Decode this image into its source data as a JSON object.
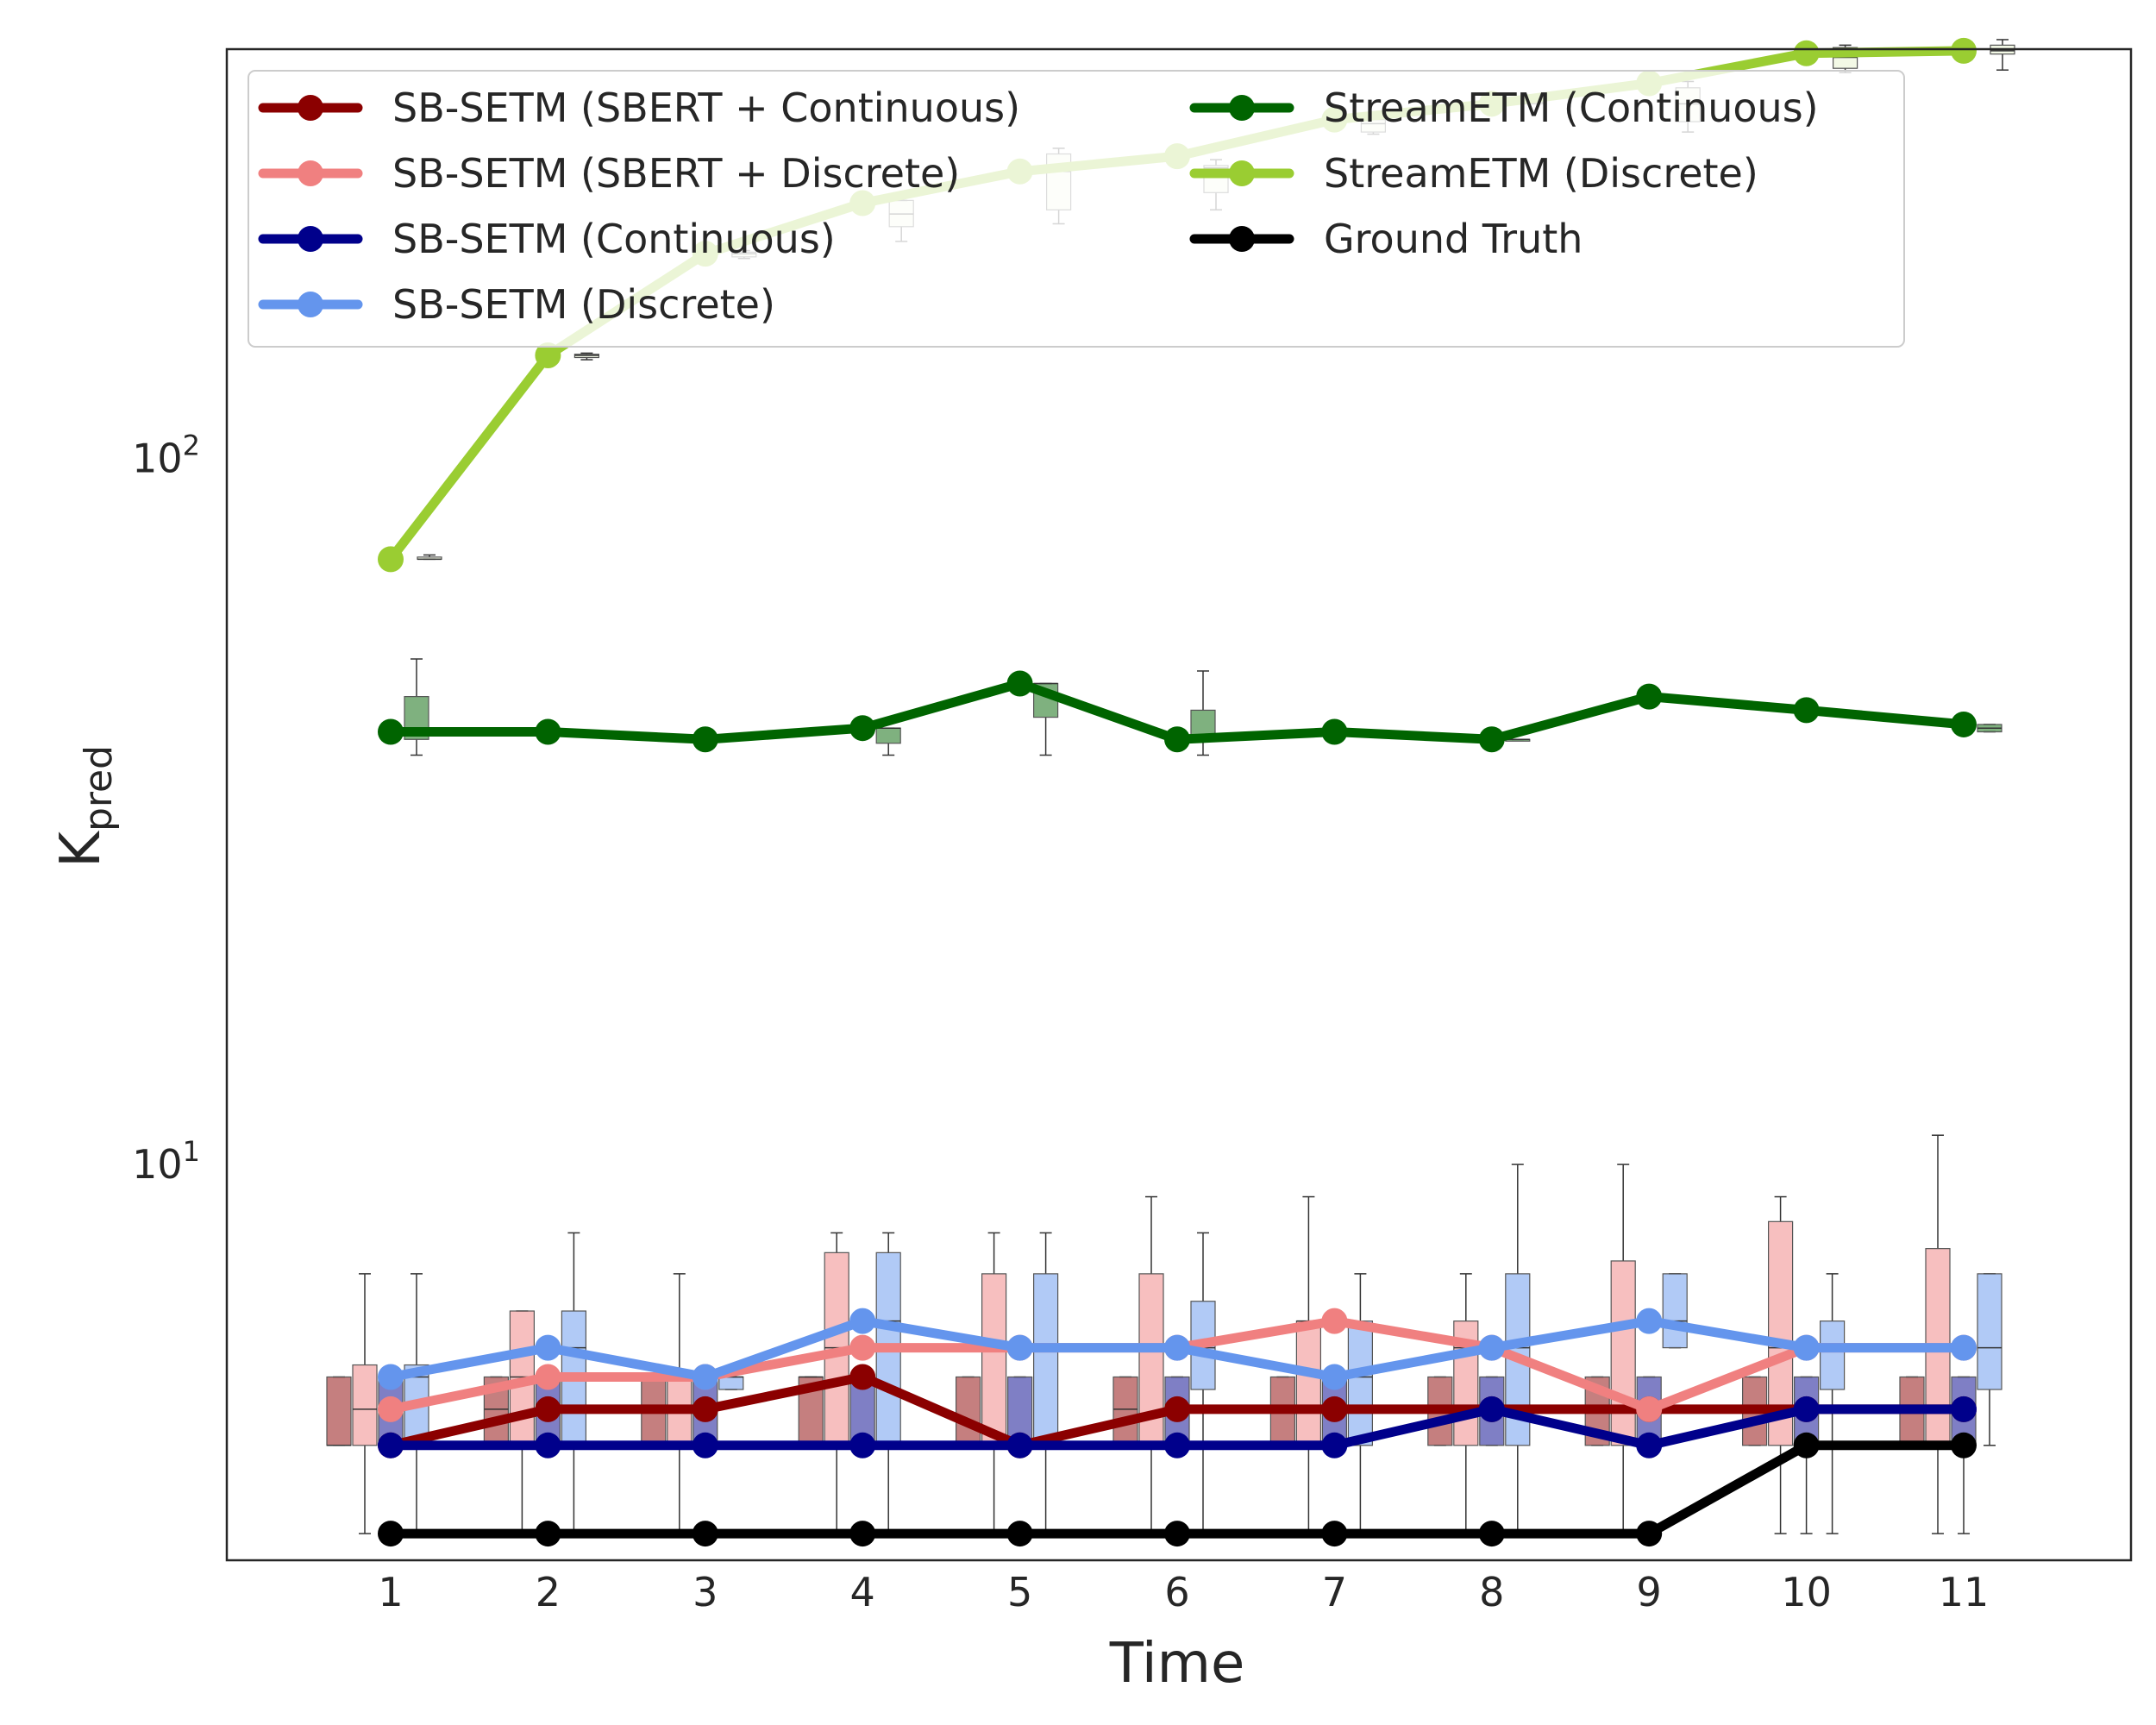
{
  "chart_data": {
    "type": "line",
    "title": "",
    "xlabel": "Time",
    "ylabel": {
      "base": "K",
      "subscript": "pred"
    },
    "yscale": "log",
    "ylim": [
      2.75,
      380
    ],
    "grid": false,
    "legend_position": "top",
    "x": [
      1,
      2,
      3,
      4,
      5,
      6,
      7,
      8,
      9,
      10,
      11
    ],
    "y_ticks": [
      {
        "value": 10,
        "base": "10",
        "exp": "1"
      },
      {
        "value": 100,
        "base": "10",
        "exp": "2"
      }
    ],
    "series": [
      {
        "name": "SB-SETM (SBERT + Continuous)",
        "color": "#8b0000",
        "values": [
          4,
          4.5,
          4.5,
          5,
          4,
          4.5,
          4.5,
          4.5,
          4.5,
          4.5,
          4.5
        ]
      },
      {
        "name": "SB-SETM (SBERT + Discrete)",
        "color": "#f08080",
        "values": [
          4.5,
          5,
          5,
          5.5,
          5.5,
          5.5,
          6,
          5.5,
          4.5,
          5.5,
          5.5
        ]
      },
      {
        "name": "SB-SETM (Continuous)",
        "color": "#00008b",
        "values": [
          4,
          4,
          4,
          4,
          4,
          4,
          4,
          4.5,
          4,
          4.5,
          4.5
        ]
      },
      {
        "name": "SB-SETM (Discrete)",
        "color": "#6495ed",
        "values": [
          5,
          5.5,
          5,
          6,
          5.5,
          5.5,
          5,
          5.5,
          6,
          5.5,
          5.5
        ]
      },
      {
        "name": "StreamETM (Continuous)",
        "color": "#006400",
        "values": [
          41,
          41,
          40,
          41.5,
          48,
          40,
          41,
          40,
          46,
          44,
          42
        ]
      },
      {
        "name": "StreamETM (Discrete)",
        "color": "#9acd32",
        "values": [
          72,
          140,
          195,
          230,
          255,
          268,
          302,
          318,
          340,
          375,
          378
        ]
      },
      {
        "name": "Ground Truth",
        "color": "#000000",
        "values": [
          3,
          3,
          3,
          3,
          3,
          3,
          3,
          3,
          3,
          4,
          4
        ]
      }
    ],
    "boxplots": [
      {
        "series": "SB-SETM (SBERT + Continuous)",
        "boxes": [
          {
            "t": 1,
            "lo": 4,
            "q1": 4,
            "med": 4,
            "q3": 5,
            "hi": 5
          },
          {
            "t": 2,
            "lo": 4,
            "q1": 4,
            "med": 4.5,
            "q3": 5,
            "hi": 5
          },
          {
            "t": 3,
            "lo": 4,
            "q1": 4,
            "med": 4.5,
            "q3": 5,
            "hi": 5
          },
          {
            "t": 4,
            "lo": 4,
            "q1": 4,
            "med": 5,
            "q3": 5,
            "hi": 5
          },
          {
            "t": 5,
            "lo": 4,
            "q1": 4,
            "med": 4,
            "q3": 5,
            "hi": 5
          },
          {
            "t": 6,
            "lo": 4,
            "q1": 4,
            "med": 4.5,
            "q3": 5,
            "hi": 5
          },
          {
            "t": 7,
            "lo": 4,
            "q1": 4,
            "med": 4.5,
            "q3": 5,
            "hi": 5
          },
          {
            "t": 8,
            "lo": 4,
            "q1": 4,
            "med": 4.5,
            "q3": 5,
            "hi": 5
          },
          {
            "t": 9,
            "lo": 4,
            "q1": 4,
            "med": 4.5,
            "q3": 5,
            "hi": 5
          },
          {
            "t": 10,
            "lo": 4,
            "q1": 4,
            "med": 4.5,
            "q3": 5,
            "hi": 5
          },
          {
            "t": 11,
            "lo": 4,
            "q1": 4,
            "med": 4.5,
            "q3": 5,
            "hi": 5
          }
        ]
      },
      {
        "series": "SB-SETM (SBERT + Discrete)",
        "boxes": [
          {
            "t": 1,
            "lo": 3,
            "q1": 4,
            "med": 4.5,
            "q3": 5.2,
            "hi": 7
          },
          {
            "t": 2,
            "lo": 3,
            "q1": 4,
            "med": 5,
            "q3": 6.2,
            "hi": 6.2
          },
          {
            "t": 3,
            "lo": 3,
            "q1": 4,
            "med": 5,
            "q3": 5,
            "hi": 7
          },
          {
            "t": 4,
            "lo": 3,
            "q1": 4,
            "med": 5.5,
            "q3": 7.5,
            "hi": 8
          },
          {
            "t": 5,
            "lo": 3,
            "q1": 4,
            "med": 5.5,
            "q3": 7,
            "hi": 8
          },
          {
            "t": 6,
            "lo": 3,
            "q1": 4,
            "med": 5.5,
            "q3": 7,
            "hi": 9
          },
          {
            "t": 7,
            "lo": 3,
            "q1": 4,
            "med": 6,
            "q3": 6,
            "hi": 9
          },
          {
            "t": 8,
            "lo": 3,
            "q1": 4,
            "med": 5.5,
            "q3": 6,
            "hi": 7
          },
          {
            "t": 9,
            "lo": 3,
            "q1": 4,
            "med": 4.5,
            "q3": 7.3,
            "hi": 10
          },
          {
            "t": 10,
            "lo": 3,
            "q1": 4,
            "med": 5.5,
            "q3": 8.3,
            "hi": 9
          },
          {
            "t": 11,
            "lo": 3,
            "q1": 4,
            "med": 5.5,
            "q3": 7.6,
            "hi": 11
          }
        ]
      },
      {
        "series": "SB-SETM (Continuous)",
        "boxes": [
          {
            "t": 1,
            "lo": 4,
            "q1": 4,
            "med": 4,
            "q3": 5,
            "hi": 5
          },
          {
            "t": 2,
            "lo": 4,
            "q1": 4,
            "med": 4,
            "q3": 5,
            "hi": 5
          },
          {
            "t": 3,
            "lo": 4,
            "q1": 4,
            "med": 4,
            "q3": 5,
            "hi": 5
          },
          {
            "t": 4,
            "lo": 4,
            "q1": 4,
            "med": 4,
            "q3": 5,
            "hi": 5
          },
          {
            "t": 5,
            "lo": 4,
            "q1": 4,
            "med": 4,
            "q3": 5,
            "hi": 5
          },
          {
            "t": 6,
            "lo": 4,
            "q1": 4,
            "med": 4,
            "q3": 5,
            "hi": 5
          },
          {
            "t": 7,
            "lo": 4,
            "q1": 4,
            "med": 4,
            "q3": 5,
            "hi": 5
          },
          {
            "t": 8,
            "lo": 4,
            "q1": 4,
            "med": 4.5,
            "q3": 5,
            "hi": 5
          },
          {
            "t": 9,
            "lo": 4,
            "q1": 4,
            "med": 4,
            "q3": 5,
            "hi": 5
          },
          {
            "t": 10,
            "lo": 3,
            "q1": 4,
            "med": 4.5,
            "q3": 5,
            "hi": 5
          },
          {
            "t": 11,
            "lo": 3,
            "q1": 4,
            "med": 4.5,
            "q3": 5,
            "hi": 5
          }
        ]
      },
      {
        "series": "SB-SETM (Discrete)",
        "boxes": [
          {
            "t": 1,
            "lo": 3,
            "q1": 4,
            "med": 5,
            "q3": 5.2,
            "hi": 7
          },
          {
            "t": 2,
            "lo": 3,
            "q1": 4,
            "med": 5.5,
            "q3": 6.2,
            "hi": 8
          },
          {
            "t": 3,
            "lo": 4.8,
            "q1": 4.8,
            "med": 5,
            "q3": 5,
            "hi": 5
          },
          {
            "t": 4,
            "lo": 3,
            "q1": 4,
            "med": 6,
            "q3": 7.5,
            "hi": 8
          },
          {
            "t": 5,
            "lo": 3,
            "q1": 4,
            "med": 5.5,
            "q3": 7,
            "hi": 8
          },
          {
            "t": 6,
            "lo": 3,
            "q1": 4.8,
            "med": 5.5,
            "q3": 6.4,
            "hi": 8
          },
          {
            "t": 7,
            "lo": 3,
            "q1": 4,
            "med": 5,
            "q3": 6,
            "hi": 7
          },
          {
            "t": 8,
            "lo": 3,
            "q1": 4,
            "med": 5.5,
            "q3": 7,
            "hi": 10
          },
          {
            "t": 9,
            "lo": 5.5,
            "q1": 5.5,
            "med": 6,
            "q3": 7,
            "hi": 7
          },
          {
            "t": 10,
            "lo": 3,
            "q1": 4.8,
            "med": 5.5,
            "q3": 6,
            "hi": 7
          },
          {
            "t": 11,
            "lo": 4,
            "q1": 4.8,
            "med": 5.5,
            "q3": 7,
            "hi": 7
          }
        ]
      },
      {
        "series": "StreamETM (Continuous)",
        "boxes": [
          {
            "t": 1,
            "lo": 38,
            "q1": 40,
            "med": 41,
            "q3": 46,
            "hi": 52
          },
          {
            "t": 4,
            "lo": 38,
            "q1": 39.5,
            "med": 41.5,
            "q3": 41.5,
            "hi": 41.5
          },
          {
            "t": 5,
            "lo": 38,
            "q1": 43,
            "med": 48,
            "q3": 48,
            "hi": 48
          },
          {
            "t": 6,
            "lo": 38,
            "q1": 40,
            "med": 40,
            "q3": 44,
            "hi": 50
          },
          {
            "t": 8,
            "lo": 40,
            "q1": 40,
            "med": 40,
            "q3": 40,
            "hi": 40
          },
          {
            "t": 10,
            "lo": 44,
            "q1": 44,
            "med": 44,
            "q3": 44,
            "hi": 44
          },
          {
            "t": 11,
            "lo": 41,
            "q1": 41,
            "med": 41.5,
            "q3": 42,
            "hi": 42
          }
        ]
      },
      {
        "series": "StreamETM (Discrete)",
        "boxes": [
          {
            "t": 1,
            "lo": 72,
            "q1": 72,
            "med": 72,
            "q3": 72.5,
            "hi": 73
          },
          {
            "t": 2,
            "lo": 138,
            "q1": 139,
            "med": 140,
            "q3": 140.5,
            "hi": 141
          },
          {
            "t": 3,
            "lo": 192,
            "q1": 193,
            "med": 195,
            "q3": 196,
            "hi": 197
          },
          {
            "t": 4,
            "lo": 203,
            "q1": 213,
            "med": 222,
            "q3": 232,
            "hi": 232
          },
          {
            "t": 5,
            "lo": 215,
            "q1": 225,
            "med": 255,
            "q3": 270,
            "hi": 275
          },
          {
            "t": 6,
            "lo": 225,
            "q1": 238,
            "med": 258,
            "q3": 260,
            "hi": 265
          },
          {
            "t": 7,
            "lo": 288,
            "q1": 290,
            "med": 298,
            "q3": 302,
            "hi": 305
          },
          {
            "t": 8,
            "lo": 318,
            "q1": 318,
            "med": 320,
            "q3": 322,
            "hi": 325
          },
          {
            "t": 9,
            "lo": 290,
            "q1": 300,
            "med": 318,
            "q3": 335,
            "hi": 342
          },
          {
            "t": 10,
            "lo": 352,
            "q1": 357,
            "med": 370,
            "q3": 382,
            "hi": 385
          },
          {
            "t": 11,
            "lo": 355,
            "q1": 374,
            "med": 378,
            "q3": 385,
            "hi": 392
          }
        ]
      }
    ]
  }
}
